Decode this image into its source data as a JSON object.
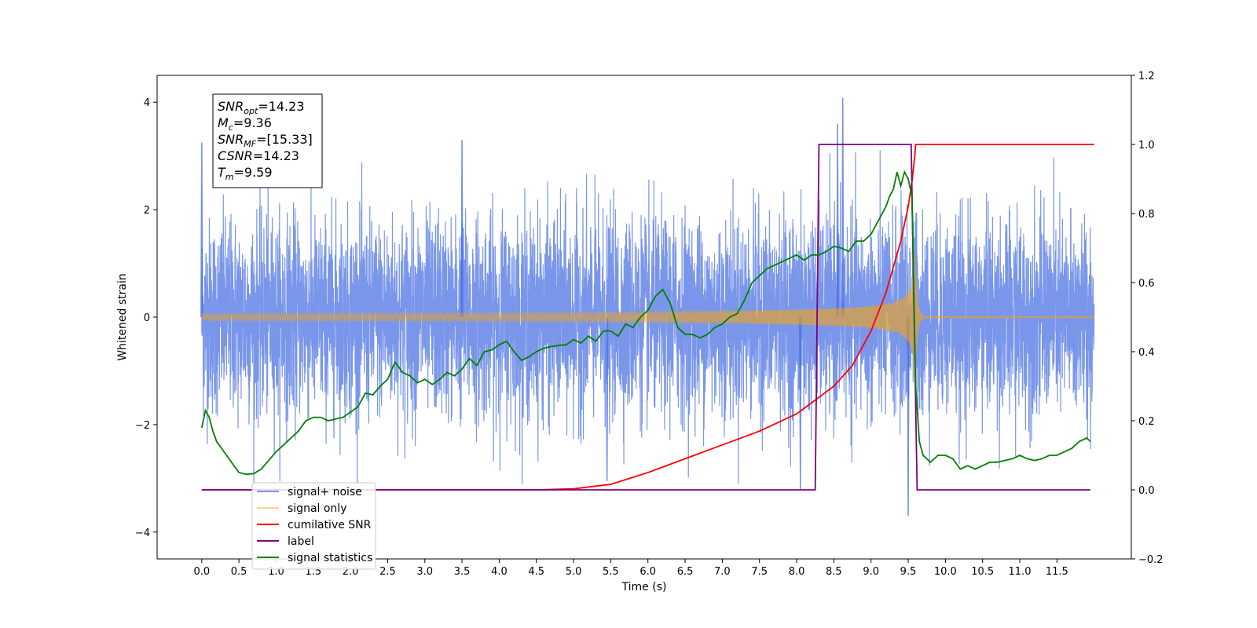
{
  "chart_data": {
    "type": "line",
    "xlabel": "Time (s)",
    "ylabel": "Whitened strain",
    "xlim": [
      -0.6,
      12.5
    ],
    "ylim": [
      -4.5,
      4.5
    ],
    "y2lim": [
      -0.2,
      1.2
    ],
    "x_ticks": [
      "0.0",
      "0.5",
      "1.0",
      "1.5",
      "2.0",
      "2.5",
      "3.0",
      "3.5",
      "4.0",
      "4.5",
      "5.0",
      "5.5",
      "6.0",
      "6.5",
      "7.0",
      "7.5",
      "8.0",
      "8.5",
      "9.0",
      "9.5",
      "10.0",
      "10.5",
      "11.0",
      "11.5"
    ],
    "y_ticks": [
      "4",
      "2",
      "0",
      "−2",
      "−4"
    ],
    "y2_ticks": [
      "1.2",
      "1.0",
      "0.8",
      "0.6",
      "0.4",
      "0.2",
      "0.0",
      "−0.2"
    ],
    "annotation": {
      "lines": [
        {
          "base": "SNR",
          "sub": "opt",
          "rest": "=14.23"
        },
        {
          "base": "M",
          "sub": "c",
          "rest": "=9.36"
        },
        {
          "base": "SNR",
          "sub": "MF",
          "rest": "=[15.33]"
        },
        {
          "base": "CSNR",
          "sub": "",
          "rest": "=14.23"
        },
        {
          "base": "T",
          "sub": "m",
          "rest": "=9.59"
        }
      ]
    },
    "legend": {
      "placement": "lower-left",
      "entries": [
        {
          "label": "signal+ noise",
          "color": "#4169e1"
        },
        {
          "label": "signal only",
          "color": "#ffa500"
        },
        {
          "label": "cumilative SNR",
          "color": "#ff0000"
        },
        {
          "label": "label",
          "color": "#800080"
        },
        {
          "label": "signal statistics",
          "color": "#008000"
        }
      ]
    },
    "series": [
      {
        "name": "signal+ noise",
        "axis": "left",
        "color": "#4169e1",
        "x_range": [
          0.0,
          12.0
        ],
        "std": 0.9,
        "spikes": [
          [
            0.0,
            3.25
          ],
          [
            8.62,
            4.08
          ],
          [
            8.55,
            3.6
          ],
          [
            9.5,
            -3.7
          ],
          [
            3.5,
            3.3
          ],
          [
            8.05,
            -3.2
          ],
          [
            5.45,
            -3.05
          ]
        ]
      },
      {
        "name": "signal only",
        "axis": "left",
        "color": "#ffa500",
        "merger_time": 9.59,
        "envelope_at_merger": 1.15
      },
      {
        "name": "cumilative SNR",
        "axis": "right",
        "color": "#ff0000",
        "x": [
          0,
          4.5,
          5.0,
          5.5,
          6.0,
          6.5,
          7.0,
          7.5,
          8.0,
          8.25,
          8.5,
          8.75,
          9.0,
          9.2,
          9.4,
          9.5,
          9.55,
          9.59,
          9.6,
          12.0
        ],
        "y": [
          0,
          0,
          0.003,
          0.016,
          0.05,
          0.09,
          0.13,
          0.17,
          0.22,
          0.26,
          0.3,
          0.36,
          0.46,
          0.57,
          0.72,
          0.82,
          0.89,
          0.97,
          1.0,
          1.0
        ]
      },
      {
        "name": "label",
        "axis": "right",
        "color": "#800080",
        "x": [
          0,
          8.25,
          8.3,
          9.54,
          9.62,
          11.95
        ],
        "y": [
          0,
          0,
          1,
          1,
          0,
          0
        ]
      },
      {
        "name": "signal statistics",
        "axis": "right",
        "color": "#008000",
        "x": [
          0,
          0.05,
          0.1,
          0.15,
          0.2,
          0.3,
          0.4,
          0.5,
          0.6,
          0.7,
          0.8,
          0.9,
          1.0,
          1.1,
          1.2,
          1.3,
          1.4,
          1.5,
          1.6,
          1.7,
          1.8,
          1.9,
          2.0,
          2.1,
          2.2,
          2.3,
          2.4,
          2.5,
          2.6,
          2.7,
          2.8,
          2.9,
          3.0,
          3.1,
          3.2,
          3.3,
          3.4,
          3.5,
          3.6,
          3.7,
          3.8,
          3.9,
          4.0,
          4.1,
          4.2,
          4.3,
          4.4,
          4.5,
          4.6,
          4.7,
          4.8,
          4.9,
          5.0,
          5.1,
          5.2,
          5.3,
          5.4,
          5.5,
          5.6,
          5.7,
          5.8,
          5.9,
          6.0,
          6.1,
          6.2,
          6.3,
          6.4,
          6.5,
          6.6,
          6.7,
          6.8,
          6.9,
          7.0,
          7.1,
          7.2,
          7.3,
          7.4,
          7.5,
          7.6,
          7.7,
          7.8,
          7.9,
          8.0,
          8.1,
          8.2,
          8.3,
          8.4,
          8.5,
          8.6,
          8.7,
          8.8,
          8.9,
          9.0,
          9.1,
          9.2,
          9.25,
          9.3,
          9.35,
          9.4,
          9.45,
          9.5,
          9.55,
          9.6,
          9.65,
          9.7,
          9.8,
          9.9,
          10.0,
          10.1,
          10.2,
          10.3,
          10.4,
          10.5,
          10.6,
          10.7,
          10.8,
          10.9,
          11.0,
          11.1,
          11.2,
          11.3,
          11.4,
          11.5,
          11.6,
          11.7,
          11.8,
          11.9,
          11.95
        ],
        "y": [
          0.18,
          0.23,
          0.21,
          0.17,
          0.14,
          0.11,
          0.08,
          0.05,
          0.045,
          0.047,
          0.06,
          0.085,
          0.11,
          0.13,
          0.15,
          0.17,
          0.2,
          0.21,
          0.21,
          0.2,
          0.205,
          0.21,
          0.225,
          0.24,
          0.28,
          0.275,
          0.3,
          0.32,
          0.37,
          0.34,
          0.33,
          0.31,
          0.32,
          0.305,
          0.32,
          0.34,
          0.33,
          0.35,
          0.38,
          0.36,
          0.4,
          0.405,
          0.42,
          0.43,
          0.4,
          0.375,
          0.385,
          0.4,
          0.41,
          0.415,
          0.418,
          0.42,
          0.435,
          0.425,
          0.445,
          0.43,
          0.46,
          0.46,
          0.445,
          0.48,
          0.47,
          0.5,
          0.52,
          0.56,
          0.58,
          0.54,
          0.47,
          0.45,
          0.45,
          0.44,
          0.45,
          0.47,
          0.48,
          0.5,
          0.51,
          0.55,
          0.6,
          0.62,
          0.64,
          0.65,
          0.66,
          0.67,
          0.68,
          0.665,
          0.68,
          0.68,
          0.69,
          0.705,
          0.7,
          0.69,
          0.72,
          0.72,
          0.74,
          0.78,
          0.82,
          0.85,
          0.87,
          0.92,
          0.88,
          0.92,
          0.9,
          0.85,
          0.3,
          0.14,
          0.1,
          0.08,
          0.1,
          0.1,
          0.09,
          0.06,
          0.07,
          0.06,
          0.07,
          0.08,
          0.08,
          0.085,
          0.09,
          0.1,
          0.09,
          0.085,
          0.09,
          0.1,
          0.1,
          0.11,
          0.12,
          0.14,
          0.15,
          0.14
        ]
      }
    ]
  }
}
